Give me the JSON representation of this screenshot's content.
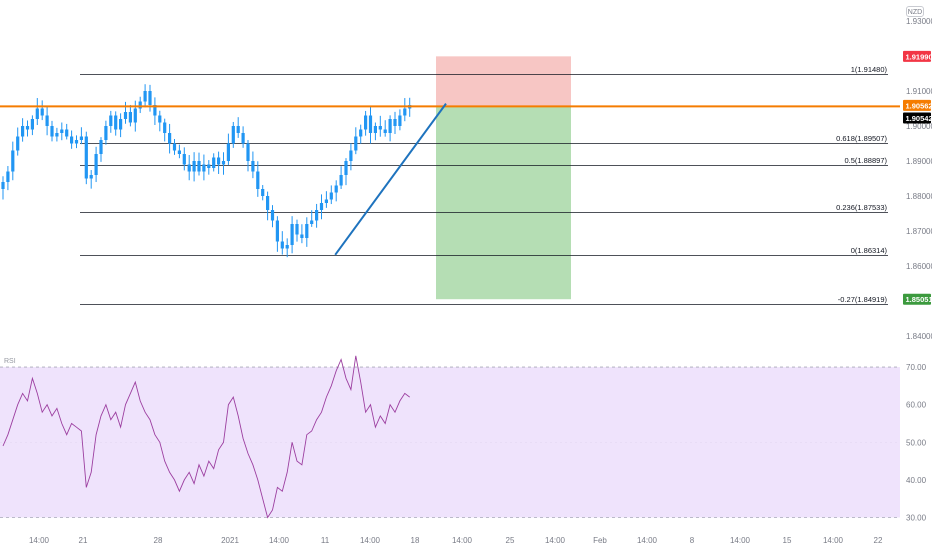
{
  "currency_badge": "NZD",
  "colors": {
    "candle": "#2196f3",
    "support_line": "#1e73be",
    "resistance_line": "#f57c00",
    "stop_zone": "#f7c6c4",
    "target_zone": "#b5deb4",
    "rsi_line": "#9c3fa0",
    "rsi_band": "#efe3fc",
    "price_tag_stop": "#f23645",
    "price_tag_target": "#3c9a3e",
    "price_tag_current": "#000000",
    "price_tag_line": "#f57c00"
  },
  "chart_data": [
    {
      "type": "candlestick",
      "price_axis": {
        "ylim": [
          1.836,
          1.936
        ],
        "ticks": [
          "1.93000",
          "1.91000",
          "1.90000",
          "1.89000",
          "1.88000",
          "1.87000",
          "1.86000",
          "1.84000"
        ],
        "tick_values": [
          1.93,
          1.91,
          1.9,
          1.89,
          1.88,
          1.87,
          1.86,
          1.84
        ]
      },
      "time_axis": {
        "labels": [
          "14:00",
          "21",
          "28",
          "2021",
          "14:00",
          "11",
          "14:00",
          "18",
          "14:00",
          "25",
          "14:00",
          "Feb",
          "14:00",
          "8",
          "14:00",
          "15",
          "14:00",
          "22"
        ]
      },
      "price_tags": [
        {
          "label": "1.91990",
          "value": 1.9199,
          "color": "#f23645"
        },
        {
          "label": "1.90562",
          "value": 1.90562,
          "color": "#f57c00"
        },
        {
          "label": "1.90542",
          "value": 1.90542,
          "color": "#000000"
        },
        {
          "label": "1.85051",
          "value": 1.85051,
          "color": "#3c9a3e"
        }
      ],
      "fib_levels": [
        {
          "label": "1(1.91480)",
          "value": 1.9148
        },
        {
          "label": "0.618(1.89507)",
          "value": 1.89507
        },
        {
          "label": "0.5(1.88897)",
          "value": 1.88897
        },
        {
          "label": "0.236(1.87533)",
          "value": 1.87533
        },
        {
          "label": "0(1.86314)",
          "value": 1.86314
        },
        {
          "label": "-0.27(1.84919)",
          "value": 1.84919
        }
      ],
      "horizontal_line": {
        "value": 1.90562
      },
      "trendline": {
        "from_close_index": 68,
        "to_value": 1.9064
      },
      "position": {
        "entry": 1.90562,
        "stop": 1.9199,
        "target": 1.85051
      },
      "closes": [
        1.884,
        1.887,
        1.893,
        1.897,
        1.9,
        1.899,
        1.902,
        1.905,
        1.903,
        1.9,
        1.897,
        1.898,
        1.899,
        1.897,
        1.895,
        1.896,
        1.897,
        1.885,
        1.886,
        1.892,
        1.896,
        1.9,
        1.903,
        1.899,
        1.902,
        1.904,
        1.901,
        1.905,
        1.907,
        1.91,
        1.906,
        1.903,
        1.901,
        1.898,
        1.895,
        1.893,
        1.892,
        1.889,
        1.887,
        1.89,
        1.887,
        1.889,
        1.888,
        1.891,
        1.889,
        1.89,
        1.895,
        1.9,
        1.898,
        1.895,
        1.89,
        1.887,
        1.882,
        1.88,
        1.876,
        1.873,
        1.867,
        1.865,
        1.866,
        1.872,
        1.869,
        1.868,
        1.872,
        1.873,
        1.876,
        1.878,
        1.879,
        1.881,
        1.883,
        1.886,
        1.89,
        1.893,
        1.897,
        1.899,
        1.903,
        1.898,
        1.9,
        1.899,
        1.898,
        1.902,
        1.9,
        1.903,
        1.905,
        1.906
      ]
    },
    {
      "type": "line",
      "title": "RSI",
      "ylim": [
        28,
        74
      ],
      "ticks": [
        "70.00",
        "60.00",
        "50.00",
        "40.00",
        "30.00"
      ],
      "tick_values": [
        70,
        60,
        50,
        40,
        30
      ],
      "band": [
        30,
        70
      ],
      "values": [
        49,
        52,
        56,
        60,
        63,
        61,
        67,
        63,
        58,
        60,
        57,
        59,
        55,
        52,
        55,
        54,
        53,
        38,
        42,
        52,
        57,
        60,
        56,
        58,
        54,
        60,
        63,
        66,
        61,
        58,
        56,
        52,
        50,
        45,
        42,
        40,
        37,
        40,
        42,
        39,
        44,
        41,
        45,
        43,
        48,
        50,
        60,
        62,
        57,
        51,
        47,
        44,
        40,
        35,
        30,
        32,
        38,
        37,
        42,
        50,
        45,
        44,
        52,
        53,
        56,
        58,
        62,
        65,
        69,
        72,
        67,
        64,
        73,
        66,
        58,
        60,
        54,
        57,
        55,
        60,
        58,
        61,
        63,
        62
      ]
    }
  ]
}
